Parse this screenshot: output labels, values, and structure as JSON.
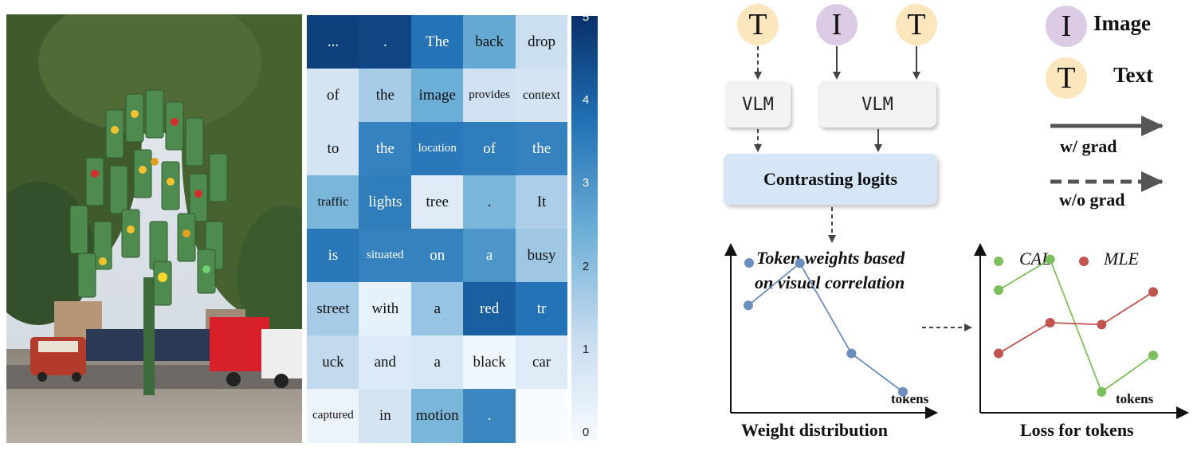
{
  "heatmap": {
    "rows": [
      [
        {
          "t": "...",
          "v": 4.7
        },
        {
          "t": ".",
          "v": 4.6
        },
        {
          "t": "The",
          "v": 3.7
        },
        {
          "t": "back",
          "v": 2.6
        },
        {
          "t": "drop",
          "v": 1.1
        }
      ],
      [
        {
          "t": "of",
          "v": 0.9
        },
        {
          "t": "the",
          "v": 1.7
        },
        {
          "t": "image",
          "v": 2.5
        },
        {
          "t": "provides",
          "v": 1.0
        },
        {
          "t": "context",
          "v": 0.9
        }
      ],
      [
        {
          "t": "to",
          "v": 0.9
        },
        {
          "t": "the",
          "v": 3.4
        },
        {
          "t": "location",
          "v": 3.6
        },
        {
          "t": "of",
          "v": 3.5
        },
        {
          "t": "the",
          "v": 3.4
        }
      ],
      [
        {
          "t": "traffic",
          "v": 2.3
        },
        {
          "t": "lights",
          "v": 3.5
        },
        {
          "t": "tree",
          "v": 0.6
        },
        {
          "t": ".",
          "v": 2.3
        },
        {
          "t": "It",
          "v": 1.6
        }
      ],
      [
        {
          "t": "is",
          "v": 3.6
        },
        {
          "t": "situated",
          "v": 3.4
        },
        {
          "t": "on",
          "v": 3.4
        },
        {
          "t": "a",
          "v": 3.0
        },
        {
          "t": "busy",
          "v": 1.8
        }
      ],
      [
        {
          "t": "street",
          "v": 1.7
        },
        {
          "t": "with",
          "v": 0.4
        },
        {
          "t": "a",
          "v": 1.9
        },
        {
          "t": "red",
          "v": 4.1
        },
        {
          "t": "tr",
          "v": 3.7
        }
      ],
      [
        {
          "t": "uck",
          "v": 1.3
        },
        {
          "t": "and",
          "v": 0.7
        },
        {
          "t": "a",
          "v": 0.8
        },
        {
          "t": "black",
          "v": 0.2
        },
        {
          "t": "car",
          "v": 0.6
        }
      ],
      [
        {
          "t": "captured",
          "v": 0.3
        },
        {
          "t": "in",
          "v": 0.9
        },
        {
          "t": "motion",
          "v": 2.3
        },
        {
          "t": ".",
          "v": 3.3
        },
        {
          "t": "",
          "v": 0.0
        }
      ]
    ]
  },
  "colorbar": {
    "ticks": [
      "5",
      "4",
      "3",
      "2",
      "1",
      "0"
    ],
    "min": 0,
    "max": 5
  },
  "diagram": {
    "circle_T1": "T",
    "circle_I": "I",
    "circle_T2": "T",
    "vlm1": "VLM",
    "vlm2": "VLM",
    "contrast": "Contrasting logits",
    "legend": {
      "image_symbol": "I",
      "image_label": "Image",
      "text_symbol": "T",
      "text_label": "Text",
      "with_grad": "w/ grad",
      "without_grad": "w/o grad"
    },
    "left_chart": {
      "legend_line1": "Token weights based",
      "legend_line2": "on visual correlation",
      "x_label": "tokens",
      "caption": "Weight distribution"
    },
    "right_chart": {
      "series1": "CAL",
      "series2": "MLE",
      "x_label": "tokens",
      "caption": "Loss for tokens"
    }
  },
  "chart_data": [
    {
      "type": "line",
      "title": "Weight distribution",
      "xlabel": "tokens",
      "x": [
        1,
        2,
        3,
        4
      ],
      "series": [
        {
          "name": "Token weights based on visual correlation",
          "values": [
            0.7,
            0.92,
            0.45,
            0.25
          ]
        }
      ],
      "color": "#6c8ebf"
    },
    {
      "type": "line",
      "title": "Loss for tokens",
      "xlabel": "tokens",
      "x": [
        1,
        2,
        3,
        4
      ],
      "series": [
        {
          "name": "CAL",
          "values": [
            0.78,
            0.94,
            0.25,
            0.44
          ],
          "color": "#7dbf5c"
        },
        {
          "name": "MLE",
          "values": [
            0.45,
            0.61,
            0.6,
            0.77
          ],
          "color": "#c25450"
        }
      ]
    }
  ],
  "colors": {
    "cal": "#7dbf5c",
    "mle": "#c25450",
    "weight": "#6c8ebf",
    "arrow": "#555555"
  }
}
